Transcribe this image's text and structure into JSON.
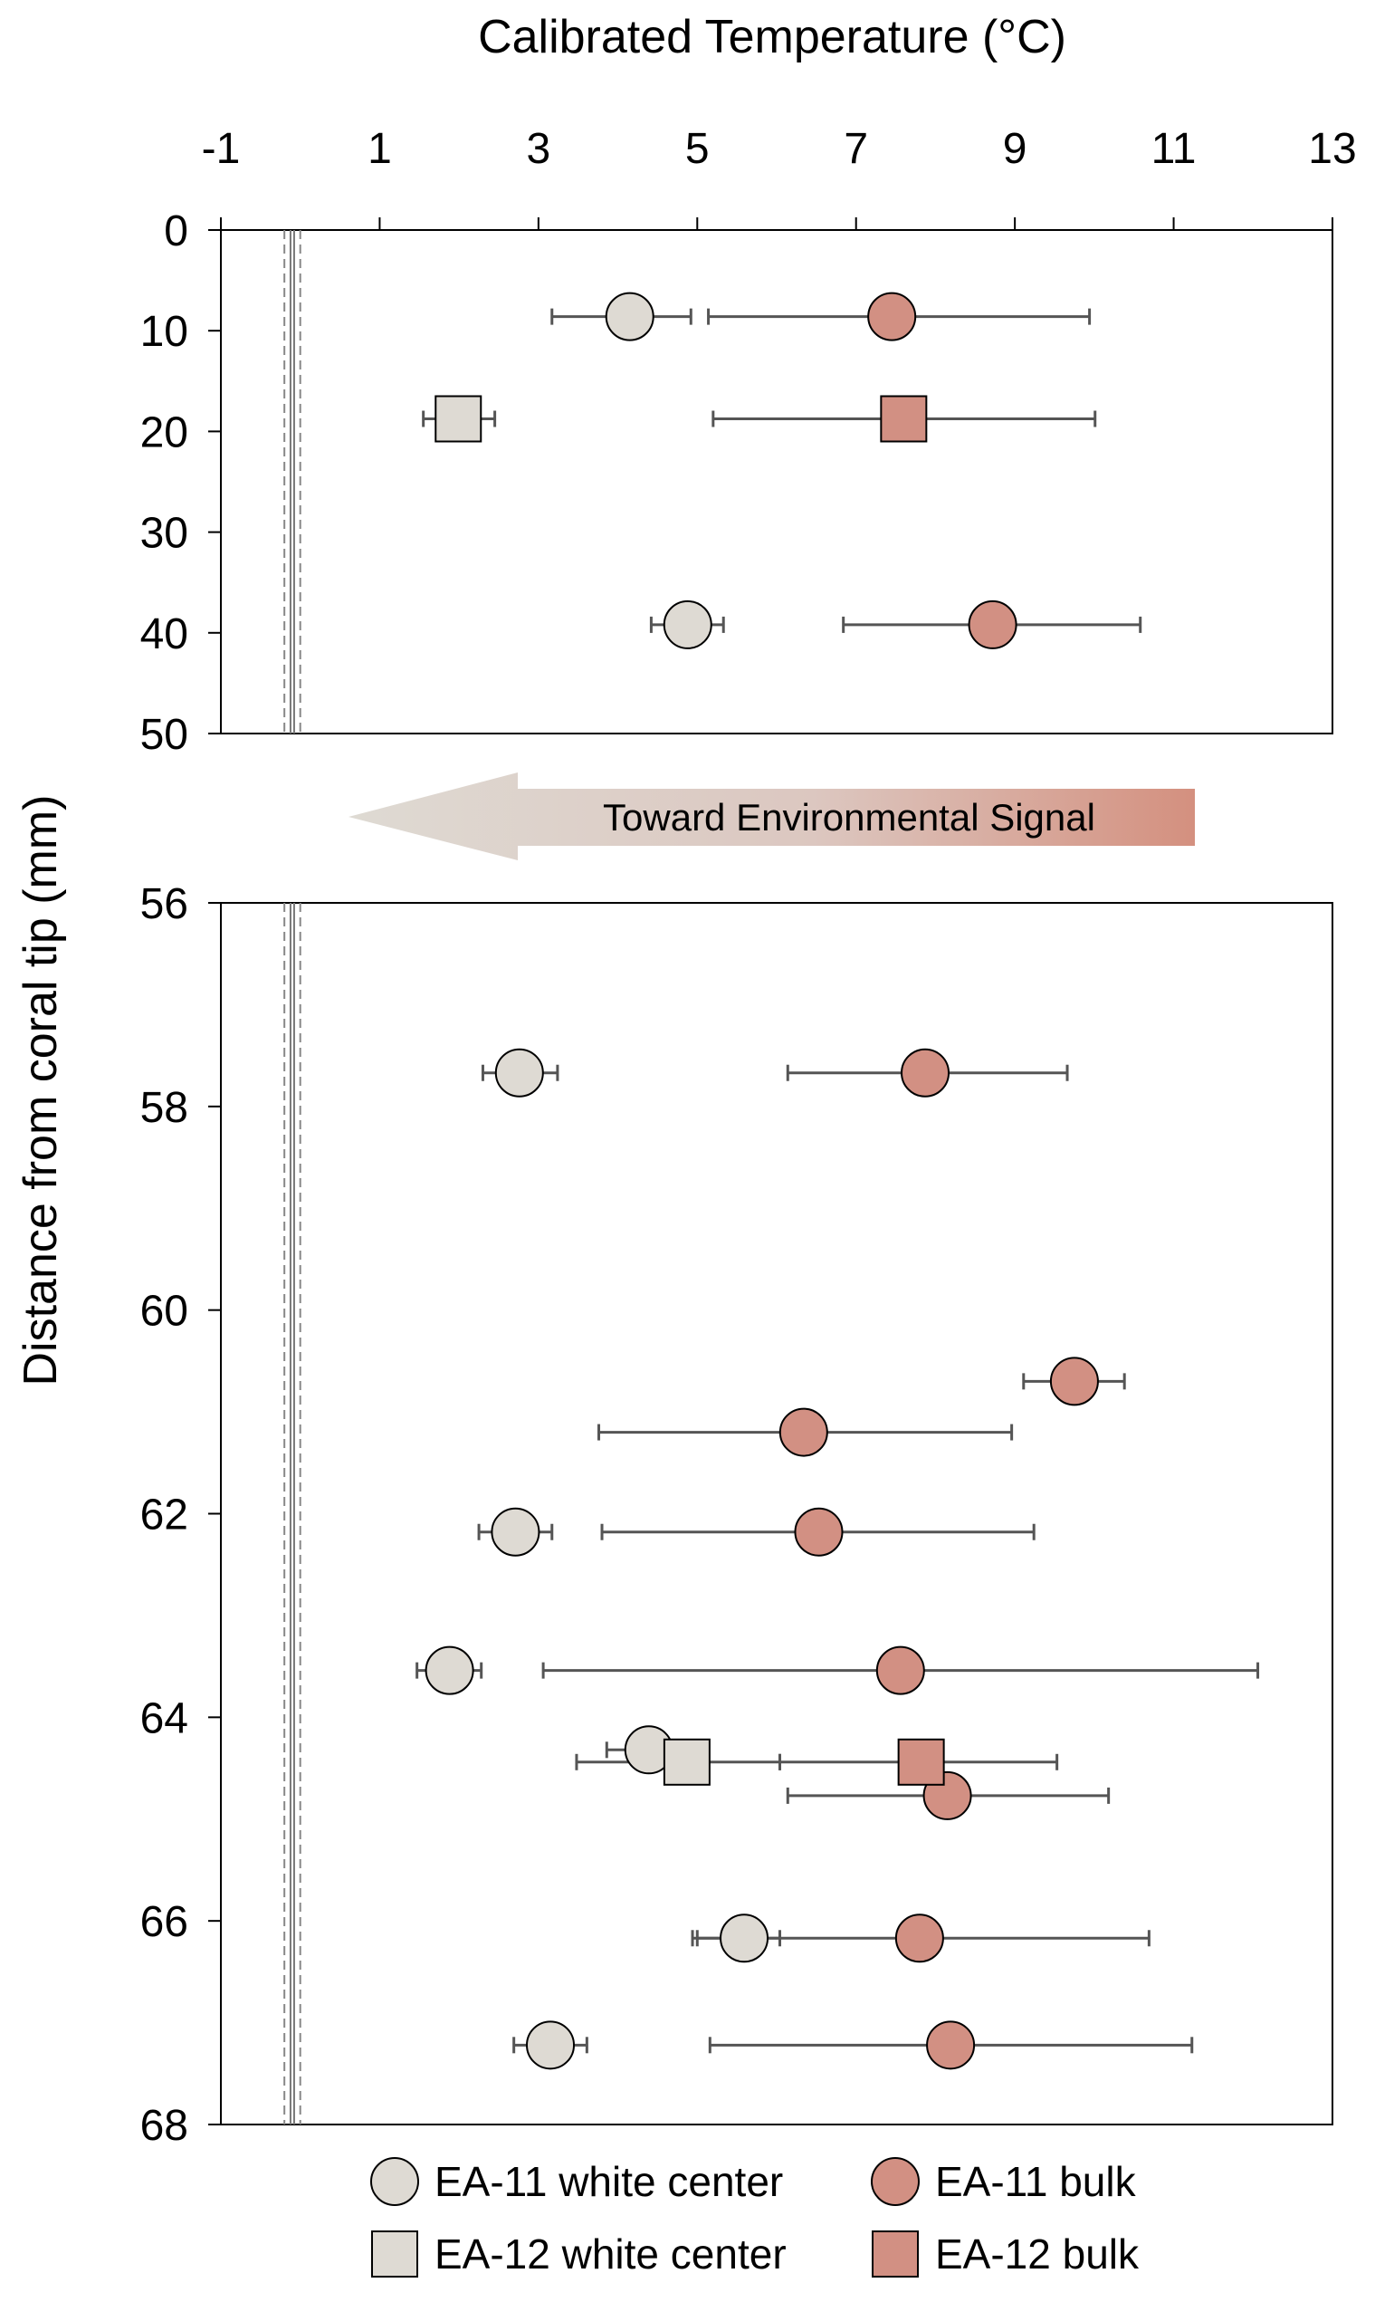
{
  "chart_data": {
    "type": "scatter",
    "xlabel": "Calibrated Temperature (°C)",
    "ylabel": "Distance from coral tip (mm)",
    "xlim": [
      -1,
      13
    ],
    "xticks": [
      -1,
      1,
      3,
      5,
      7,
      9,
      11,
      13
    ],
    "panels": [
      {
        "ylim": [
          0,
          50
        ],
        "yticks": [
          0,
          10,
          20,
          30,
          40,
          50
        ]
      },
      {
        "ylim": [
          56,
          68
        ],
        "yticks": [
          56,
          58,
          60,
          62,
          64,
          66,
          68
        ]
      }
    ],
    "reference_lines": {
      "solid": -0.1,
      "dashed": [
        -0.2,
        0.0
      ]
    },
    "arrow_label": "Toward Environmental Signal",
    "legend_placement": "bottom",
    "colors": {
      "white_center": "#dedad3",
      "bulk": "#d29083",
      "errorbar": "#555555"
    },
    "series": [
      {
        "name": "EA-11 white center",
        "marker": "circle",
        "color": "#dedad3",
        "points": [
          {
            "y": 8.6,
            "x": 4.15,
            "lo": 3.17,
            "hi": 4.92
          },
          {
            "y": 39.2,
            "x": 4.88,
            "lo": 4.42,
            "hi": 5.33
          },
          {
            "y": 57.67,
            "x": 2.76,
            "lo": 2.3,
            "hi": 3.24
          },
          {
            "y": 62.18,
            "x": 2.71,
            "lo": 2.25,
            "hi": 3.17
          },
          {
            "y": 63.54,
            "x": 1.88,
            "lo": 1.47,
            "hi": 2.28
          },
          {
            "y": 64.32,
            "x": 4.39,
            "lo": 3.86,
            "hi": 4.9
          },
          {
            "y": 66.17,
            "x": 5.59,
            "lo": 4.94,
            "hi": 6.04
          },
          {
            "y": 67.22,
            "x": 3.15,
            "lo": 2.69,
            "hi": 3.61
          }
        ]
      },
      {
        "name": "EA-11 bulk",
        "marker": "circle",
        "color": "#d29083",
        "points": [
          {
            "y": 8.6,
            "x": 7.45,
            "lo": 5.14,
            "hi": 9.94
          },
          {
            "y": 39.2,
            "x": 8.72,
            "lo": 6.84,
            "hi": 10.58
          },
          {
            "y": 57.67,
            "x": 7.87,
            "lo": 6.14,
            "hi": 9.66
          },
          {
            "y": 60.7,
            "x": 9.75,
            "lo": 9.11,
            "hi": 10.38
          },
          {
            "y": 61.2,
            "x": 6.34,
            "lo": 3.76,
            "hi": 8.96
          },
          {
            "y": 62.18,
            "x": 6.53,
            "lo": 3.8,
            "hi": 9.24
          },
          {
            "y": 63.54,
            "x": 7.56,
            "lo": 3.06,
            "hi": 12.06
          },
          {
            "y": 64.77,
            "x": 8.15,
            "lo": 6.14,
            "hi": 10.18
          },
          {
            "y": 66.17,
            "x": 7.8,
            "lo": 5.0,
            "hi": 10.69
          },
          {
            "y": 67.22,
            "x": 8.19,
            "lo": 5.16,
            "hi": 11.23
          }
        ]
      },
      {
        "name": "EA-12 white center",
        "marker": "square",
        "color": "#dedad3",
        "points": [
          {
            "y": 18.75,
            "x": 1.99,
            "lo": 1.55,
            "hi": 2.45
          },
          {
            "y": 64.44,
            "x": 4.87,
            "lo": 3.48,
            "hi": 6.04
          }
        ]
      },
      {
        "name": "EA-12 bulk",
        "marker": "square",
        "color": "#d29083",
        "points": [
          {
            "y": 18.75,
            "x": 7.6,
            "lo": 5.2,
            "hi": 10.01
          },
          {
            "y": 64.44,
            "x": 7.82,
            "lo": 6.04,
            "hi": 9.53
          }
        ]
      }
    ]
  }
}
